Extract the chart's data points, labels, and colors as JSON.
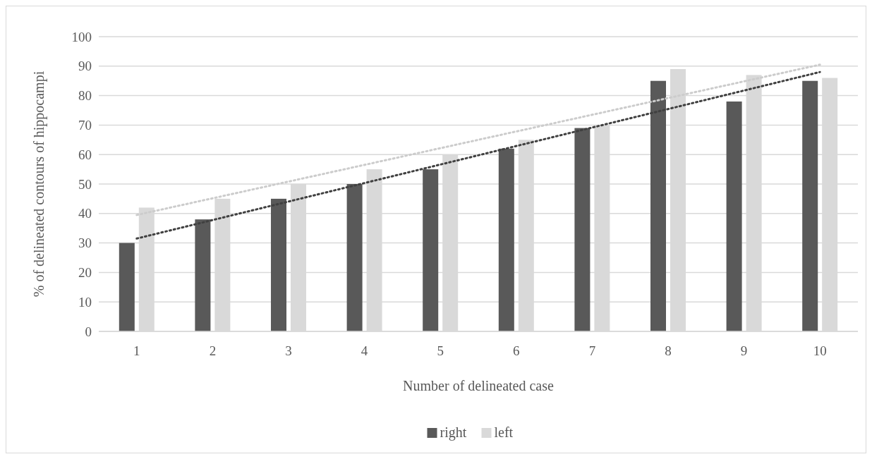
{
  "chart_data": {
    "type": "bar",
    "xlabel": "Number of delineated case",
    "ylabel": "% of delineated contours of hippocampi",
    "categories": [
      "1",
      "2",
      "3",
      "4",
      "5",
      "6",
      "7",
      "8",
      "9",
      "10"
    ],
    "series": [
      {
        "name": "right",
        "color": "#595959",
        "values": [
          30,
          38,
          45,
          50,
          55,
          62,
          69,
          85,
          78,
          85
        ]
      },
      {
        "name": "left",
        "color": "#d9d9d9",
        "values": [
          42,
          45,
          50,
          55,
          60,
          65,
          70,
          89,
          87,
          86
        ]
      },
      {
        "type": "line",
        "color": "#404040",
        "x": [
          "1",
          "10"
        ],
        "values": [
          31.5,
          88
        ],
        "line_style": "dotted"
      },
      {
        "type": "line",
        "color": "#cccccc",
        "x": [
          "1",
          "10"
        ],
        "values": [
          39.5,
          90.5
        ],
        "line_style": "dotted"
      }
    ],
    "ylim": [
      0,
      100
    ],
    "yticks": [
      0,
      10,
      20,
      30,
      40,
      50,
      60,
      70,
      80,
      90,
      100
    ],
    "grid": "y",
    "legend": "bottom"
  }
}
